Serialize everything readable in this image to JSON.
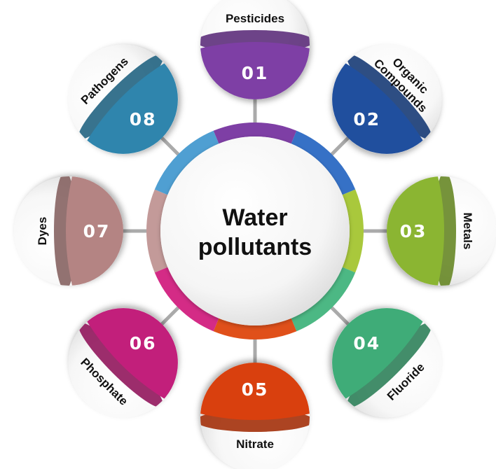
{
  "title": {
    "line1": "Water",
    "line2": "pollutants"
  },
  "nodes": [
    {
      "number": "01",
      "label_lines": [
        "Pesticides"
      ],
      "color": "#7e3fa5"
    },
    {
      "number": "02",
      "label_lines": [
        "Organic",
        "Compounds"
      ],
      "color": "#204f9e"
    },
    {
      "number": "03",
      "label_lines": [
        "Metals"
      ],
      "color": "#8bb532"
    },
    {
      "number": "04",
      "label_lines": [
        "Fluoride"
      ],
      "color": "#3fac78"
    },
    {
      "number": "05",
      "label_lines": [
        "Nitrate"
      ],
      "color": "#d9400e"
    },
    {
      "number": "06",
      "label_lines": [
        "Phosphate"
      ],
      "color": "#c21f7b"
    },
    {
      "number": "07",
      "label_lines": [
        "Dyes"
      ],
      "color": "#b48483"
    },
    {
      "number": "08",
      "label_lines": [
        "Pathogens"
      ],
      "color": "#2f85ad"
    }
  ],
  "ring_colors": [
    "#7e3fa5",
    "#3671c6",
    "#a9c83c",
    "#4cb884",
    "#e0501a",
    "#d42b86",
    "#c39a99",
    "#4f9fd2"
  ]
}
